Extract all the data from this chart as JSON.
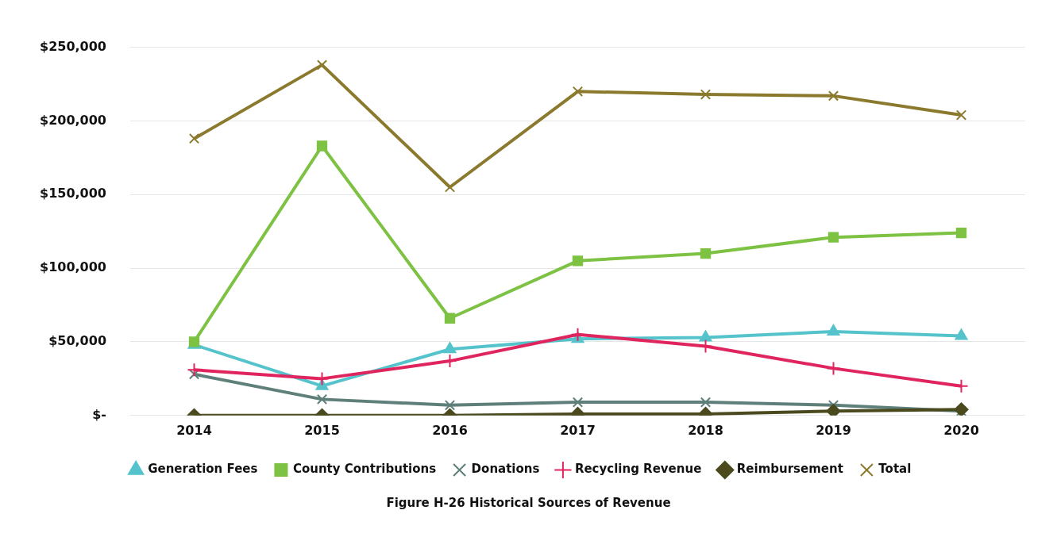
{
  "chart_data": {
    "type": "line",
    "categories": [
      "2014",
      "2015",
      "2016",
      "2017",
      "2018",
      "2019",
      "2020"
    ],
    "series": [
      {
        "name": "Generation Fees",
        "color": "#55c3cb",
        "marker": "triangle",
        "values": [
          48000,
          20000,
          45000,
          52000,
          53000,
          57000,
          54000
        ]
      },
      {
        "name": "County Contributions",
        "color": "#7dc242",
        "marker": "square",
        "values": [
          50000,
          183000,
          66000,
          105000,
          110000,
          121000,
          124000
        ]
      },
      {
        "name": "Donations",
        "color": "#5f7f7a",
        "marker": "cross",
        "values": [
          28000,
          11000,
          7000,
          9000,
          9000,
          7000,
          3000
        ]
      },
      {
        "name": "Recycling Revenue",
        "color": "#e0245e",
        "marker": "plus",
        "values": [
          31000,
          25000,
          37000,
          55000,
          47000,
          32000,
          20000
        ]
      },
      {
        "name": "Reimbursement",
        "color": "#4a4a1e",
        "marker": "diamond",
        "values": [
          0,
          0,
          0,
          1000,
          1000,
          3000,
          4000
        ]
      },
      {
        "name": "Total",
        "color": "#8b7a2e",
        "marker": "cross",
        "values": [
          188000,
          238000,
          155000,
          220000,
          218000,
          217000,
          204000
        ]
      }
    ],
    "ylim": [
      0,
      250000
    ],
    "yticks": [
      {
        "value": 0,
        "label": "$-"
      },
      {
        "value": 50000,
        "label": "$50,000"
      },
      {
        "value": 100000,
        "label": "$100,000"
      },
      {
        "value": 150000,
        "label": "$150,000"
      },
      {
        "value": 200000,
        "label": "$200,000"
      },
      {
        "value": 250000,
        "label": "$250,000"
      }
    ],
    "grid": "y",
    "legend": "bottom",
    "line_style": "solid",
    "annotations": [
      "Figure H-26 Historical Sources of Revenue"
    ]
  }
}
